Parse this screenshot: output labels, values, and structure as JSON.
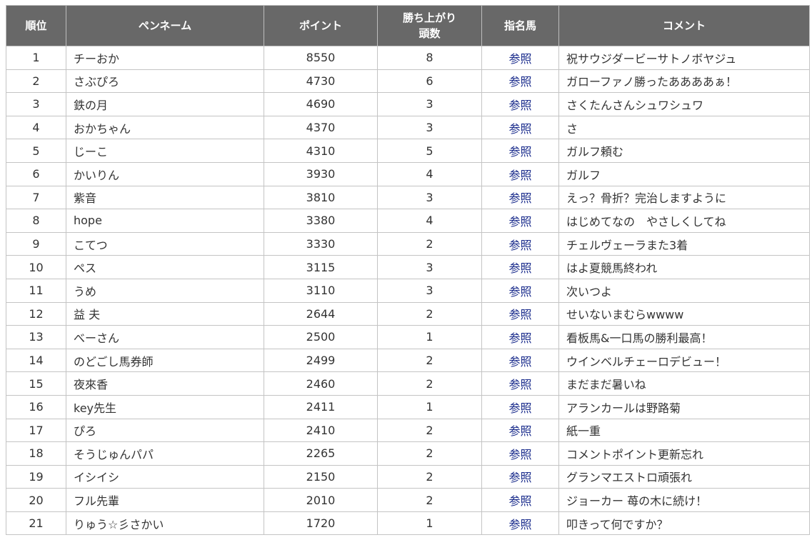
{
  "table": {
    "headers": {
      "rank": "順位",
      "pen_name": "ペンネーム",
      "points": "ポイント",
      "winning_horses": "勝ち上がり\n頭数",
      "nominated_horses": "指名馬",
      "comment": "コメント"
    },
    "rows": [
      {
        "rank": "1",
        "name": "チーおか",
        "points": "8550",
        "wins": "8",
        "link": "参照",
        "comment": "祝サウジダービーサトノボヤジュ"
      },
      {
        "rank": "2",
        "name": "さぶぴろ",
        "points": "4730",
        "wins": "6",
        "link": "参照",
        "comment": "ガローファノ勝ったああああぁ！"
      },
      {
        "rank": "3",
        "name": "鉄の月",
        "points": "4690",
        "wins": "3",
        "link": "参照",
        "comment": "さくたんさんシュワシュワ"
      },
      {
        "rank": "4",
        "name": "おかちゃん",
        "points": "4370",
        "wins": "3",
        "link": "参照",
        "comment": "さ"
      },
      {
        "rank": "5",
        "name": "じーこ",
        "points": "4310",
        "wins": "5",
        "link": "参照",
        "comment": "ガルフ頼む"
      },
      {
        "rank": "6",
        "name": "かいりん",
        "points": "3930",
        "wins": "4",
        "link": "参照",
        "comment": "ガルフ"
      },
      {
        "rank": "7",
        "name": "紫音",
        "points": "3810",
        "wins": "3",
        "link": "参照",
        "comment": "えっ？骨折？完治しますように"
      },
      {
        "rank": "8",
        "name": "hope",
        "points": "3380",
        "wins": "4",
        "link": "参照",
        "comment": "はじめてなの　やさしくしてね"
      },
      {
        "rank": "9",
        "name": "こてつ",
        "points": "3330",
        "wins": "2",
        "link": "参照",
        "comment": "チェルヴェーラまた3着"
      },
      {
        "rank": "10",
        "name": "ペス",
        "points": "3115",
        "wins": "3",
        "link": "参照",
        "comment": "はよ夏競馬終われ"
      },
      {
        "rank": "11",
        "name": "うめ",
        "points": "3110",
        "wins": "3",
        "link": "参照",
        "comment": "次いつよ"
      },
      {
        "rank": "12",
        "name": "益 夫",
        "points": "2644",
        "wins": "2",
        "link": "参照",
        "comment": "せいないまむらwwww"
      },
      {
        "rank": "13",
        "name": "べーさん",
        "points": "2500",
        "wins": "1",
        "link": "参照",
        "comment": "看板馬&一口馬の勝利最高！"
      },
      {
        "rank": "14",
        "name": "のどごし馬券師",
        "points": "2499",
        "wins": "2",
        "link": "参照",
        "comment": "ウインベルチェーロデビュー！"
      },
      {
        "rank": "15",
        "name": "夜來香",
        "points": "2460",
        "wins": "2",
        "link": "参照",
        "comment": "まだまだ暑いね"
      },
      {
        "rank": "16",
        "name": "key先生",
        "points": "2411",
        "wins": "1",
        "link": "参照",
        "comment": "アランカールは野路菊"
      },
      {
        "rank": "17",
        "name": "ぴろ",
        "points": "2410",
        "wins": "2",
        "link": "参照",
        "comment": "紙一重"
      },
      {
        "rank": "18",
        "name": "そうじゅんパパ",
        "points": "2265",
        "wins": "2",
        "link": "参照",
        "comment": "コメントポイント更新忘れ"
      },
      {
        "rank": "19",
        "name": "イシイシ",
        "points": "2150",
        "wins": "2",
        "link": "参照",
        "comment": "グランマエストロ頑張れ"
      },
      {
        "rank": "20",
        "name": "フル先輩",
        "points": "2010",
        "wins": "2",
        "link": "参照",
        "comment": "ジョーカー 苺の木に続け！"
      },
      {
        "rank": "21",
        "name": "りゅう☆彡さかい",
        "points": "1720",
        "wins": "1",
        "link": "参照",
        "comment": "叩きって何ですか？"
      }
    ]
  },
  "colors": {
    "header_bg": "#686868",
    "header_text": "#ffffff",
    "link": "#1a2c8c",
    "border": "#c4c4c4"
  }
}
